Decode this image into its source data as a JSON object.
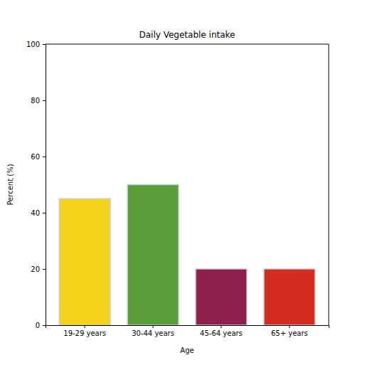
{
  "chart_data": {
    "type": "bar",
    "title": "Daily Vegetable intake",
    "x_label": "Age",
    "y_label": "Percent (%)",
    "categories": [
      "19-29 years",
      "30-44 years",
      "45-64 years",
      "65+ years"
    ],
    "values": [
      45,
      50,
      20,
      20
    ],
    "colors": [
      "#f2d21b",
      "#5a9e3a",
      "#8e1f4f",
      "#d62b1f"
    ],
    "ylim": [
      0,
      100
    ],
    "yticks": [
      0,
      20,
      40,
      60,
      80,
      100
    ],
    "grid": false
  }
}
